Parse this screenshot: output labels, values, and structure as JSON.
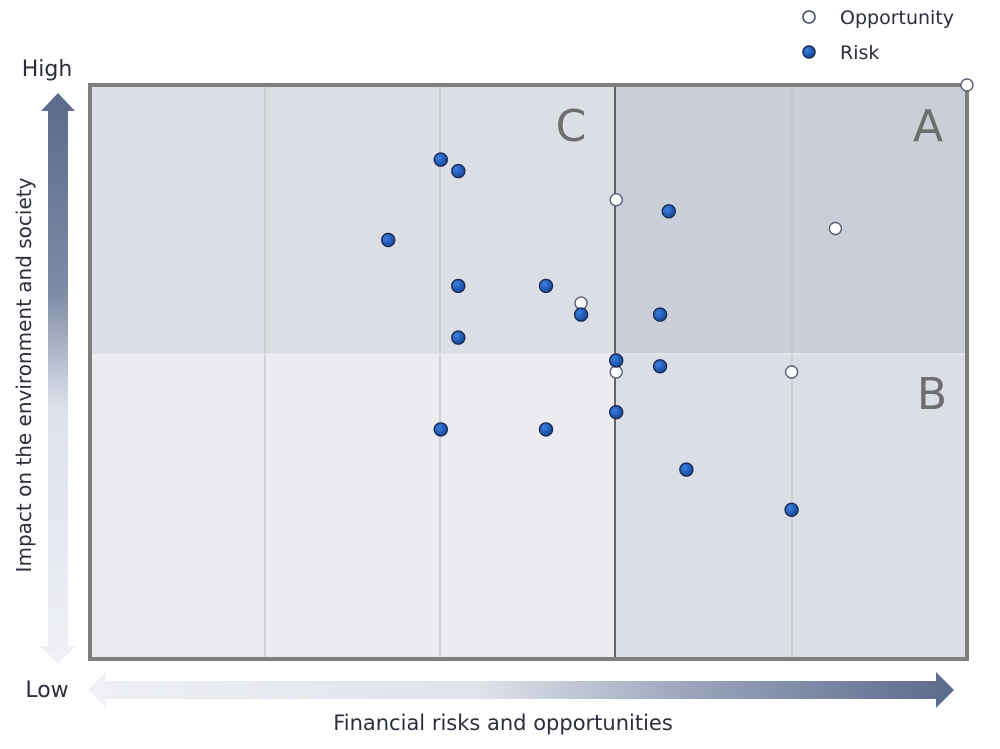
{
  "chart_data": {
    "type": "scatter",
    "xlabel": "Financial risks and opportunities",
    "ylabel": "Impact on the environment and society",
    "y_high_label": "High",
    "y_low_label": "Low",
    "xlim": [
      0,
      10
    ],
    "ylim": [
      0,
      10
    ],
    "grid": true,
    "legend_position": "top-right",
    "quadrants": {
      "top_left": "C",
      "top_right": "A",
      "bottom_right": "B"
    },
    "series": [
      {
        "name": "Opportunity",
        "marker": "hollow",
        "color": "#ffffff",
        "points": [
          {
            "x": 6.0,
            "y": 8.0
          },
          {
            "x": 8.5,
            "y": 7.5
          },
          {
            "x": 5.6,
            "y": 6.2
          },
          {
            "x": 6.0,
            "y": 5.0
          },
          {
            "x": 8.0,
            "y": 5.0
          },
          {
            "x": 10.0,
            "y": 10.0
          }
        ]
      },
      {
        "name": "Risk",
        "marker": "filled",
        "color": "#1f5fbf",
        "points": [
          {
            "x": 4.0,
            "y": 8.7
          },
          {
            "x": 4.2,
            "y": 8.5
          },
          {
            "x": 3.4,
            "y": 7.3
          },
          {
            "x": 6.6,
            "y": 7.8
          },
          {
            "x": 4.2,
            "y": 6.5
          },
          {
            "x": 5.2,
            "y": 6.5
          },
          {
            "x": 5.6,
            "y": 6.0
          },
          {
            "x": 6.5,
            "y": 6.0
          },
          {
            "x": 4.2,
            "y": 5.6
          },
          {
            "x": 6.0,
            "y": 5.2
          },
          {
            "x": 6.5,
            "y": 5.1
          },
          {
            "x": 6.0,
            "y": 4.3
          },
          {
            "x": 4.0,
            "y": 4.0
          },
          {
            "x": 5.2,
            "y": 4.0
          },
          {
            "x": 6.8,
            "y": 3.3
          },
          {
            "x": 8.0,
            "y": 2.6
          }
        ]
      }
    ]
  }
}
